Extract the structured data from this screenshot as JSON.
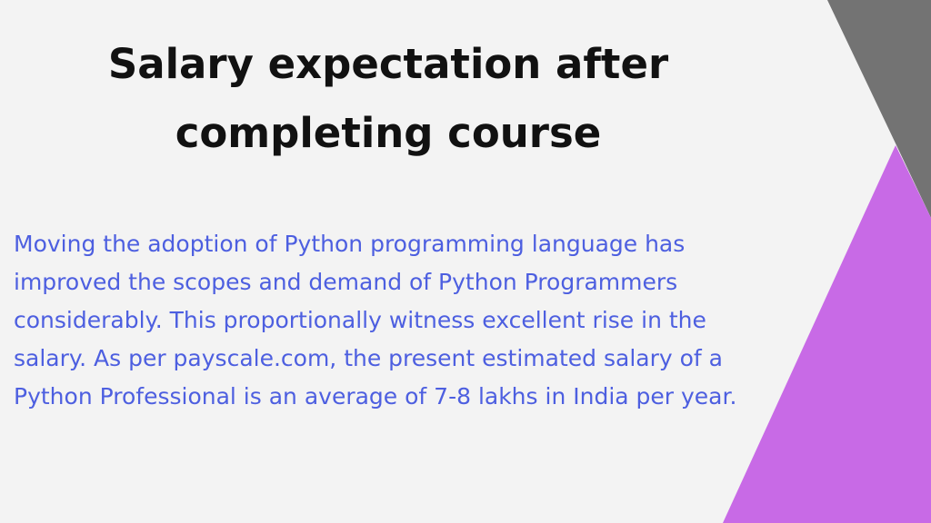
{
  "title": {
    "lines": [
      "Salary expectation after",
      "completing course"
    ]
  },
  "body": {
    "lines": [
      "Moving the adoption of Python programming language has",
      "improved the scopes and demand of Python Programmers",
      "considerably. This proportionally witness excellent rise in the",
      "salary. As per payscale.com, the present estimated salary of a",
      "Python Professional is an average of 7-8 lakhs in India per year."
    ]
  }
}
